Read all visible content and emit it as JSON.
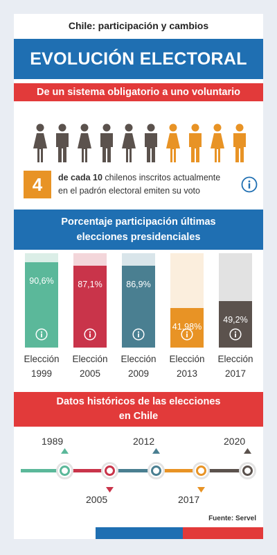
{
  "header": {
    "topline": "Chile: participación y cambios",
    "title": "EVOLUCIÓN ELECTORAL"
  },
  "section1": {
    "heading": "De un sistema obligatorio a uno voluntario",
    "people": [
      "female",
      "male",
      "female",
      "male",
      "female",
      "male",
      "female",
      "male",
      "female",
      "male"
    ],
    "people_voting": 4,
    "colors": {
      "grey": "#5b524d",
      "orange": "#e89325"
    }
  },
  "callout": {
    "number": "4",
    "bold_text": "de cada 10",
    "text_line1": " chilenos inscritos actualmente",
    "text_line2": "en el padrón electoral emiten su voto",
    "icon": "info-icon"
  },
  "section2": {
    "heading_line1": "Porcentaje participación últimas",
    "heading_line2": "elecciones presidenciales"
  },
  "chart_data": {
    "type": "bar",
    "categories": [
      "Elección 1999",
      "Elección 2005",
      "Elección 2009",
      "Elección 2013",
      "Elección 2017"
    ],
    "values": [
      90.6,
      87.1,
      86.9,
      41.98,
      49.2
    ],
    "value_labels": [
      "90,6%",
      "87,1%",
      "86,9%",
      "41,98%",
      "49,2%"
    ],
    "label_line1": [
      "Elección",
      "Elección",
      "Elección",
      "Elección",
      "Elección"
    ],
    "label_line2": [
      "1999",
      "2005",
      "2009",
      "2013",
      "2017"
    ],
    "ylim": [
      0,
      100
    ],
    "colors": [
      "#5bb89a",
      "#c9344a",
      "#4a7f91",
      "#e89325",
      "#5b524d"
    ],
    "bg_colors": [
      "#dbeee7",
      "#f3d6da",
      "#d9e5ea",
      "#fbeedd",
      "#e2e2e2"
    ]
  },
  "section3": {
    "heading_line1": "Datos históricos de las elecciones",
    "heading_line2": "en Chile"
  },
  "timeline": {
    "years_top": [
      "1989",
      "2012",
      "2020"
    ],
    "years_bottom": [
      "2005",
      "2017"
    ],
    "colors": [
      "#5bb89a",
      "#c9344a",
      "#4a7f91",
      "#e89325",
      "#5b524d"
    ]
  },
  "footer": {
    "source": "Fuente: Servel"
  }
}
